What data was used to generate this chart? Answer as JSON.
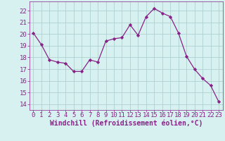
{
  "x": [
    0,
    1,
    2,
    3,
    4,
    5,
    6,
    7,
    8,
    9,
    10,
    11,
    12,
    13,
    14,
    15,
    16,
    17,
    18,
    19,
    20,
    21,
    22,
    23
  ],
  "y": [
    20.1,
    19.1,
    17.8,
    17.6,
    17.5,
    16.8,
    16.8,
    17.8,
    17.6,
    19.4,
    19.6,
    19.7,
    20.8,
    19.9,
    21.5,
    22.2,
    21.8,
    21.5,
    20.1,
    18.1,
    17.0,
    16.2,
    15.6,
    14.2
  ],
  "line_color": "#882288",
  "marker": "D",
  "marker_size": 2.2,
  "bg_color": "#d7f0f0",
  "grid_color": "#a8cccc",
  "xlabel": "Windchill (Refroidissement éolien,°C)",
  "xlabel_color": "#882288",
  "ylabel_ticks": [
    14,
    15,
    16,
    17,
    18,
    19,
    20,
    21,
    22
  ],
  "ylim": [
    13.5,
    22.8
  ],
  "xlim": [
    -0.5,
    23.5
  ],
  "tick_fontsize": 6.5,
  "xlabel_fontsize": 7.0
}
